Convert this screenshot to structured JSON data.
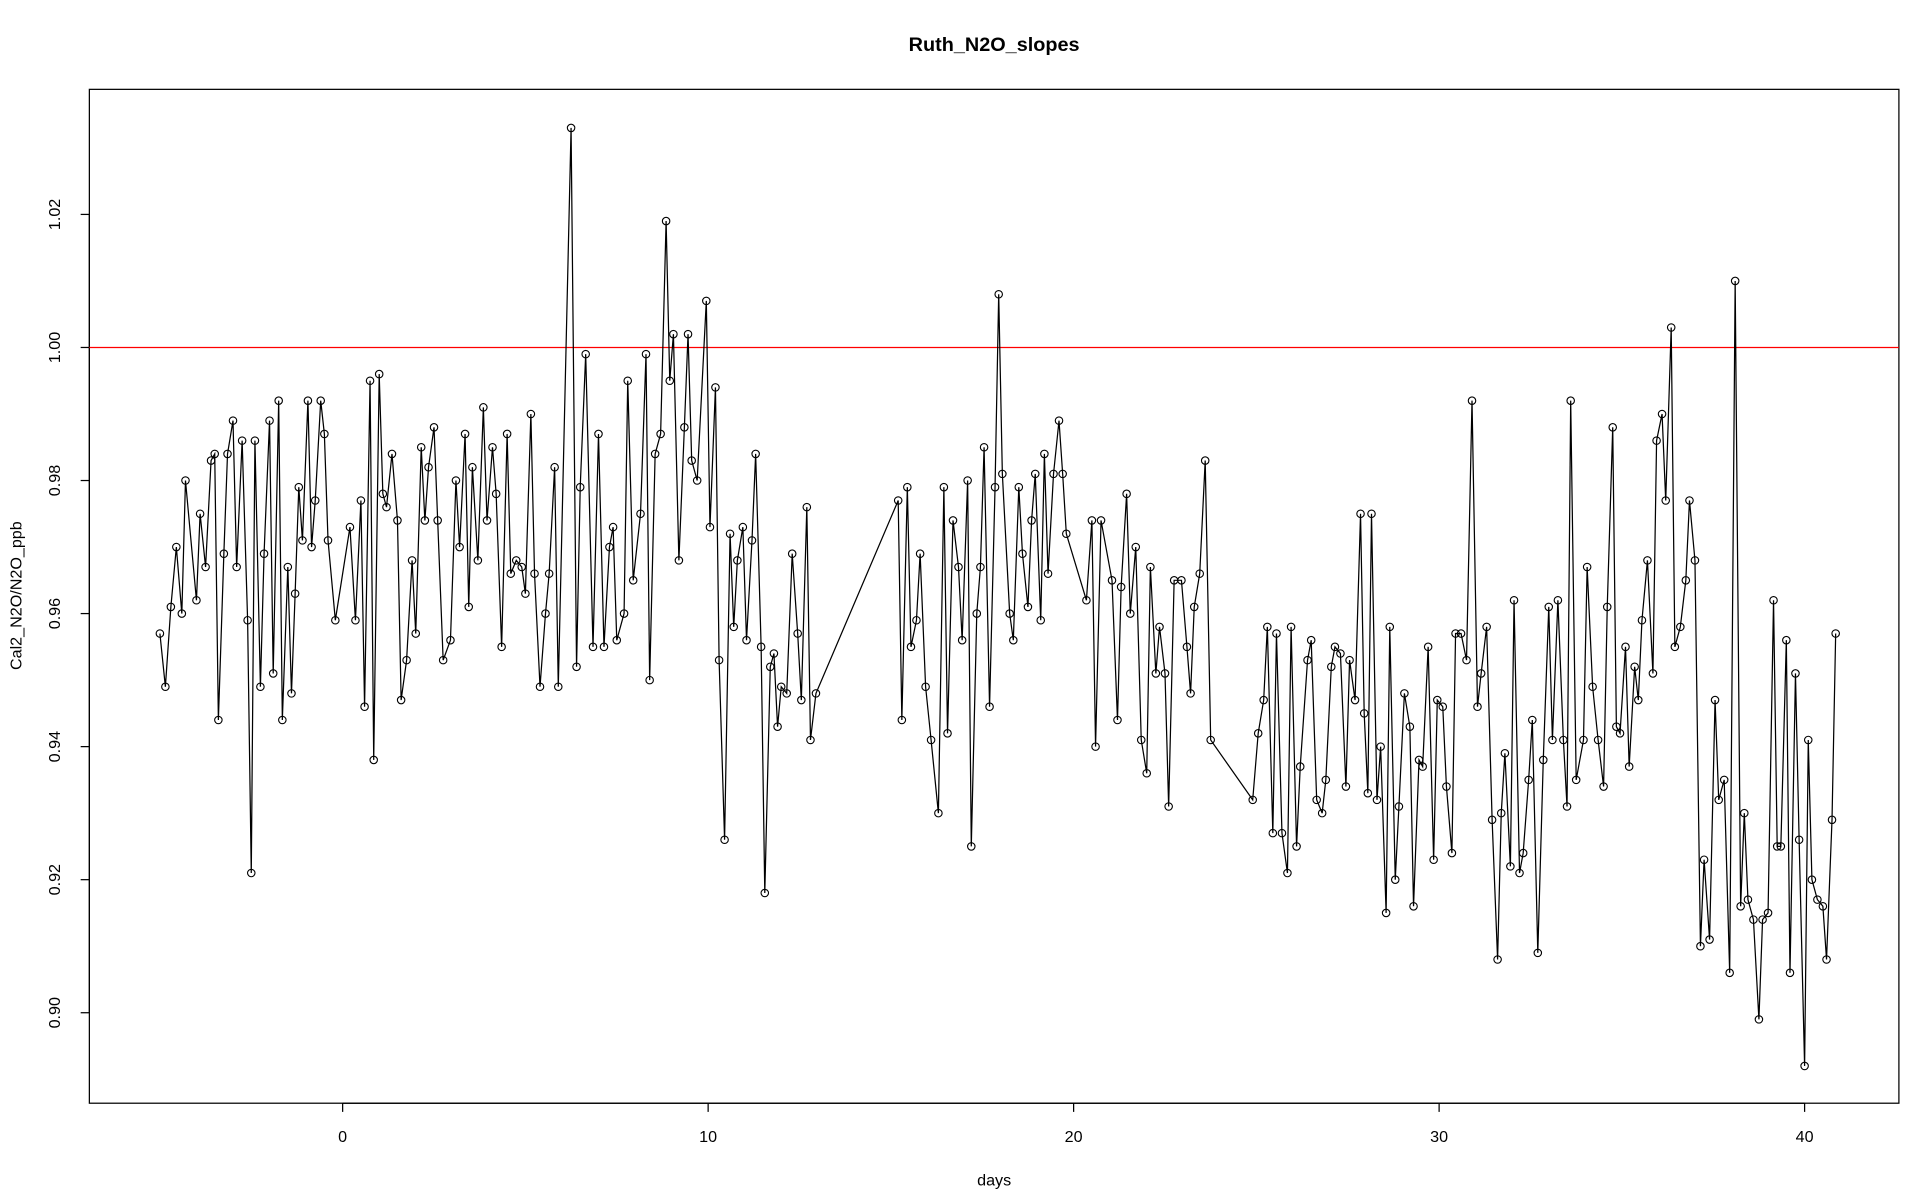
{
  "chart_data": {
    "type": "line",
    "title": "Ruth_N2O_slopes",
    "xlabel": "days",
    "ylabel": "Cal2_N2O/N2O_ppb",
    "xlim": [
      -6.93,
      42.58
    ],
    "ylim": [
      0.8864,
      1.0388
    ],
    "xticks": [
      0,
      10,
      20,
      30,
      40
    ],
    "yticks": [
      {
        "value": 0.9,
        "label": "0.90"
      },
      0.92,
      0.94,
      0.96,
      0.98,
      {
        "value": 1.0,
        "label": "1.00"
      },
      1.02
    ],
    "color": "#000000",
    "reference_line": {
      "y": 1.0,
      "color": "#ff0000"
    },
    "x": [
      -5.0,
      -4.85,
      -4.7,
      -4.55,
      -4.4,
      -4.3,
      -4.0,
      -3.9,
      -3.75,
      -3.6,
      -3.5,
      -3.4,
      -3.25,
      -3.15,
      -3.0,
      -2.9,
      -2.75,
      -2.6,
      -2.5,
      -2.4,
      -2.25,
      -2.15,
      -2.0,
      -1.9,
      -1.75,
      -1.65,
      -1.5,
      -1.4,
      -1.3,
      -1.2,
      -1.1,
      -0.95,
      -0.85,
      -0.75,
      -0.6,
      -0.5,
      -0.4,
      -0.2,
      0.2,
      0.35,
      0.5,
      0.6,
      0.75,
      0.85,
      1.0,
      1.1,
      1.2,
      1.35,
      1.5,
      1.6,
      1.75,
      1.9,
      2.0,
      2.15,
      2.25,
      2.35,
      2.5,
      2.6,
      2.75,
      2.95,
      3.1,
      3.2,
      3.35,
      3.45,
      3.55,
      3.7,
      3.85,
      3.95,
      4.1,
      4.2,
      4.35,
      4.5,
      4.6,
      4.75,
      4.9,
      5.0,
      5.15,
      5.25,
      5.4,
      5.55,
      5.65,
      5.8,
      5.9,
      6.25,
      6.4,
      6.5,
      6.65,
      6.85,
      7.0,
      7.15,
      7.3,
      7.4,
      7.5,
      7.7,
      7.8,
      7.95,
      8.15,
      8.3,
      8.4,
      8.55,
      8.7,
      8.85,
      8.95,
      9.05,
      9.2,
      9.35,
      9.45,
      9.55,
      9.7,
      9.95,
      10.05,
      10.2,
      10.3,
      10.45,
      10.6,
      10.7,
      10.8,
      10.95,
      11.05,
      11.2,
      11.3,
      11.45,
      11.55,
      11.7,
      11.8,
      11.9,
      12.0,
      12.15,
      12.3,
      12.45,
      12.55,
      12.7,
      12.8,
      12.95,
      15.2,
      15.3,
      15.45,
      15.55,
      15.7,
      15.8,
      15.95,
      16.1,
      16.3,
      16.45,
      16.55,
      16.7,
      16.85,
      16.95,
      17.1,
      17.2,
      17.35,
      17.45,
      17.55,
      17.7,
      17.85,
      17.95,
      18.05,
      18.25,
      18.35,
      18.5,
      18.6,
      18.75,
      18.85,
      18.95,
      19.1,
      19.2,
      19.3,
      19.45,
      19.6,
      19.7,
      19.8,
      20.35,
      20.5,
      20.6,
      20.75,
      21.05,
      21.2,
      21.3,
      21.45,
      21.55,
      21.7,
      21.85,
      22.0,
      22.1,
      22.25,
      22.35,
      22.5,
      22.6,
      22.75,
      22.95,
      23.1,
      23.2,
      23.3,
      23.45,
      23.6,
      23.75,
      24.9,
      25.05,
      25.2,
      25.3,
      25.45,
      25.55,
      25.7,
      25.85,
      25.95,
      26.1,
      26.2,
      26.4,
      26.5,
      26.65,
      26.8,
      26.9,
      27.05,
      27.15,
      27.3,
      27.45,
      27.55,
      27.7,
      27.85,
      27.95,
      28.05,
      28.15,
      28.3,
      28.4,
      28.55,
      28.65,
      28.8,
      28.9,
      29.05,
      29.2,
      29.3,
      29.45,
      29.55,
      29.7,
      29.85,
      29.95,
      30.1,
      30.2,
      30.35,
      30.45,
      30.6,
      30.75,
      30.9,
      31.05,
      31.15,
      31.3,
      31.45,
      31.6,
      31.7,
      31.8,
      31.95,
      32.05,
      32.2,
      32.3,
      32.45,
      32.55,
      32.7,
      32.85,
      33.0,
      33.1,
      33.25,
      33.4,
      33.5,
      33.6,
      33.75,
      33.95,
      34.05,
      34.2,
      34.35,
      34.5,
      34.6,
      34.75,
      34.85,
      34.95,
      35.1,
      35.2,
      35.35,
      35.45,
      35.55,
      35.7,
      35.85,
      35.95,
      36.1,
      36.2,
      36.35,
      36.45,
      36.6,
      36.75,
      36.85,
      37.0,
      37.15,
      37.25,
      37.4,
      37.55,
      37.65,
      37.8,
      37.95,
      38.1,
      38.25,
      38.35,
      38.45,
      38.6,
      38.75,
      38.85,
      39.0,
      39.15,
      39.25,
      39.35,
      39.5,
      39.6,
      39.75,
      39.85,
      40.0,
      40.1,
      40.2,
      40.35,
      40.5,
      40.6,
      40.75,
      40.85
    ],
    "values": [
      0.957,
      0.949,
      0.961,
      0.97,
      0.96,
      0.98,
      0.962,
      0.975,
      0.967,
      0.983,
      0.984,
      0.944,
      0.969,
      0.984,
      0.989,
      0.967,
      0.986,
      0.959,
      0.921,
      0.986,
      0.949,
      0.969,
      0.989,
      0.951,
      0.992,
      0.944,
      0.967,
      0.948,
      0.963,
      0.979,
      0.971,
      0.992,
      0.97,
      0.977,
      0.992,
      0.987,
      0.971,
      0.959,
      0.973,
      0.959,
      0.977,
      0.946,
      0.995,
      0.938,
      0.996,
      0.978,
      0.976,
      0.984,
      0.974,
      0.947,
      0.953,
      0.968,
      0.957,
      0.985,
      0.974,
      0.982,
      0.988,
      0.974,
      0.953,
      0.956,
      0.98,
      0.97,
      0.987,
      0.961,
      0.982,
      0.968,
      0.991,
      0.974,
      0.985,
      0.978,
      0.955,
      0.987,
      0.966,
      0.968,
      0.967,
      0.963,
      0.99,
      0.966,
      0.949,
      0.96,
      0.966,
      0.982,
      0.949,
      1.033,
      0.952,
      0.979,
      0.999,
      0.955,
      0.987,
      0.955,
      0.97,
      0.973,
      0.956,
      0.96,
      0.995,
      0.965,
      0.975,
      0.999,
      0.95,
      0.984,
      0.987,
      1.019,
      0.995,
      1.002,
      0.968,
      0.988,
      1.002,
      0.983,
      0.98,
      1.007,
      0.973,
      0.994,
      0.953,
      0.926,
      0.972,
      0.958,
      0.968,
      0.973,
      0.956,
      0.971,
      0.984,
      0.955,
      0.918,
      0.952,
      0.954,
      0.943,
      0.949,
      0.948,
      0.969,
      0.957,
      0.947,
      0.976,
      0.941,
      0.948,
      0.977,
      0.944,
      0.979,
      0.955,
      0.959,
      0.969,
      0.949,
      0.941,
      0.93,
      0.979,
      0.942,
      0.974,
      0.967,
      0.956,
      0.98,
      0.925,
      0.96,
      0.967,
      0.985,
      0.946,
      0.979,
      1.008,
      0.981,
      0.96,
      0.956,
      0.979,
      0.969,
      0.961,
      0.974,
      0.981,
      0.959,
      0.984,
      0.966,
      0.981,
      0.989,
      0.981,
      0.972,
      0.962,
      0.974,
      0.94,
      0.974,
      0.965,
      0.944,
      0.964,
      0.978,
      0.96,
      0.97,
      0.941,
      0.936,
      0.967,
      0.951,
      0.958,
      0.951,
      0.931,
      0.965,
      0.965,
      0.955,
      0.948,
      0.961,
      0.966,
      0.983,
      0.941,
      0.932,
      0.942,
      0.947,
      0.958,
      0.927,
      0.957,
      0.927,
      0.921,
      0.958,
      0.925,
      0.937,
      0.953,
      0.956,
      0.932,
      0.93,
      0.935,
      0.952,
      0.955,
      0.954,
      0.934,
      0.953,
      0.947,
      0.975,
      0.945,
      0.933,
      0.975,
      0.932,
      0.94,
      0.915,
      0.958,
      0.92,
      0.931,
      0.948,
      0.943,
      0.916,
      0.938,
      0.937,
      0.955,
      0.923,
      0.947,
      0.946,
      0.934,
      0.924,
      0.957,
      0.957,
      0.953,
      0.992,
      0.946,
      0.951,
      0.958,
      0.929,
      0.908,
      0.93,
      0.939,
      0.922,
      0.962,
      0.921,
      0.924,
      0.935,
      0.944,
      0.909,
      0.938,
      0.961,
      0.941,
      0.962,
      0.941,
      0.931,
      0.992,
      0.935,
      0.941,
      0.967,
      0.949,
      0.941,
      0.934,
      0.961,
      0.988,
      0.943,
      0.942,
      0.955,
      0.937,
      0.952,
      0.947,
      0.959,
      0.968,
      0.951,
      0.986,
      0.99,
      0.977,
      1.003,
      0.955,
      0.958,
      0.965,
      0.977,
      0.968,
      0.91,
      0.923,
      0.911,
      0.947,
      0.932,
      0.935,
      0.906,
      1.01,
      0.916,
      0.93,
      0.917,
      0.914,
      0.899,
      0.914,
      0.915,
      0.962,
      0.925,
      0.925,
      0.956,
      0.906,
      0.951,
      0.926,
      0.892,
      0.941,
      0.92,
      0.917,
      0.916,
      0.908,
      0.929,
      0.957
    ]
  }
}
